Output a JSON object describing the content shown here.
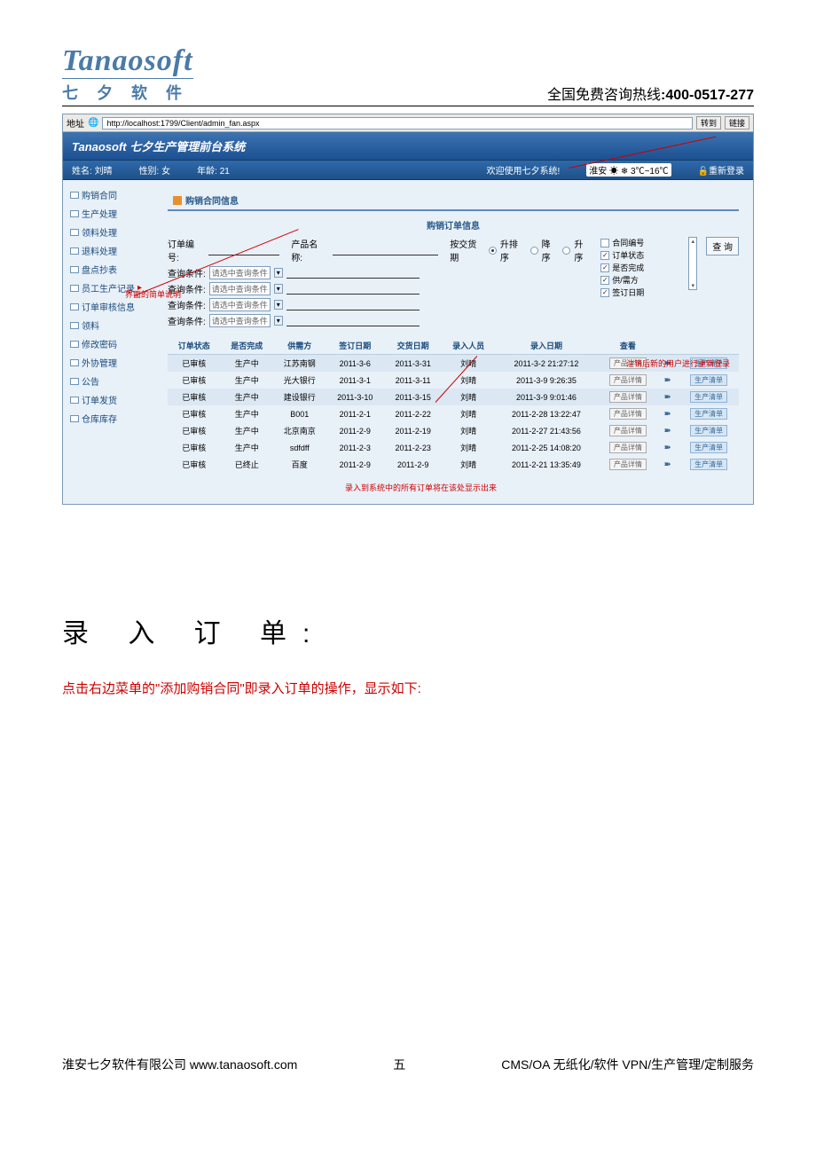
{
  "header": {
    "logo_top": "Tanaosoft",
    "logo_bottom": "七 夕 软 件",
    "hotline_label": "全国免费咨询热线",
    "hotline_number": "400-0517-277"
  },
  "browser": {
    "addr_label": "地址",
    "url": "http://localhost:1799/Client/admin_fan.aspx",
    "btn_go": "转到",
    "btn_links": "链接"
  },
  "app": {
    "brand": "Tanaosoft",
    "title": "七夕生产管理前台系统",
    "info_name_label": "姓名:",
    "info_name": "刘晴",
    "info_gender_label": "性别:",
    "info_gender": "女",
    "info_age_label": "年龄:",
    "info_age": "21",
    "welcome": "欢迎使用七夕系统!",
    "weather": "淮安 ☀ ❄ 3℃~16℃",
    "relogin": "重新登录"
  },
  "sidebar": {
    "items": [
      {
        "label": "购销合同"
      },
      {
        "label": "生产处理"
      },
      {
        "label": "领料处理"
      },
      {
        "label": "退料处理"
      },
      {
        "label": "盘点抄表"
      },
      {
        "label": "员工生产记录"
      },
      {
        "label": "订单审核信息"
      },
      {
        "label": "领料"
      },
      {
        "label": "修改密码"
      },
      {
        "label": "外协管理"
      },
      {
        "label": "公告"
      },
      {
        "label": "订单发货"
      },
      {
        "label": "仓库库存"
      }
    ]
  },
  "panel": {
    "title": "购销合同信息",
    "sub_title": "购销订单信息",
    "order_no_label": "订单编号:",
    "product_label": "产品名称:",
    "sort_label": "按交货期",
    "sort_opts": [
      "升排序",
      "降序",
      "升序"
    ],
    "cond_label": "查询条件:",
    "sel_placeholder": "请选中查询条件",
    "chk_items": [
      "合同编号",
      "订单状态",
      "是否完成",
      "供/需方",
      "签订日期"
    ],
    "query_btn": "查 询"
  },
  "table": {
    "headers": [
      "订单状态",
      "是否完成",
      "供需方",
      "签订日期",
      "交货日期",
      "录入人员",
      "录入日期",
      "查看",
      "",
      ""
    ],
    "rows": [
      {
        "s": "已审核",
        "c": "生产中",
        "sup": "江苏南钢",
        "d1": "2011-3-6",
        "d2": "2011-3-31",
        "p": "刘晴",
        "dt": "2011-3-2 21:27:12",
        "alt": 1
      },
      {
        "s": "已审核",
        "c": "生产中",
        "sup": "光大银行",
        "d1": "2011-3-1",
        "d2": "2011-3-11",
        "p": "刘晴",
        "dt": "2011-3-9 9:26:35",
        "alt": 0
      },
      {
        "s": "已审核",
        "c": "生产中",
        "sup": "建设银行",
        "d1": "2011-3-10",
        "d2": "2011-3-15",
        "p": "刘晴",
        "dt": "2011-3-9 9:01:46",
        "alt": 1
      },
      {
        "s": "已审核",
        "c": "生产中",
        "sup": "B001",
        "d1": "2011-2-1",
        "d2": "2011-2-22",
        "p": "刘晴",
        "dt": "2011-2-28 13:22:47",
        "alt": 0
      },
      {
        "s": "已审核",
        "c": "生产中",
        "sup": "北京南京",
        "d1": "2011-2-9",
        "d2": "2011-2-19",
        "p": "刘晴",
        "dt": "2011-2-27 21:43:56",
        "alt": 0
      },
      {
        "s": "已审核",
        "c": "生产中",
        "sup": "sdfdff",
        "d1": "2011-2-3",
        "d2": "2011-2-23",
        "p": "刘晴",
        "dt": "2011-2-25 14:08:20",
        "alt": 0
      },
      {
        "s": "已审核",
        "c": "已终止",
        "sup": "百度",
        "d1": "2011-2-9",
        "d2": "2011-2-9",
        "p": "刘晴",
        "dt": "2011-2-21 13:35:49",
        "alt": 0
      }
    ],
    "detail_btn": "产品详情",
    "gen_btn": "生产清单"
  },
  "annotations": {
    "top_right": "注销后新的用户进行重新登录",
    "left": "界面的简单说明",
    "bottom": "录入到系统中的所有订单将在该处显示出来",
    "arrow_to_sidebar": "▸"
  },
  "doc": {
    "heading": "录 入 订 单:",
    "red_line": "点击右边菜单的\"添加购销合同\"即录入订单的操作，显示如下:"
  },
  "footer": {
    "left": "淮安七夕软件有限公司 www.tanaosoft.com",
    "center": "五",
    "right": "CMS/OA 无纸化/软件 VPN/生产管理/定制服务"
  },
  "colors": {
    "logo": "#4a7aa8",
    "app_header": "#1c5091",
    "panel_blue": "#2a5a8a",
    "red": "#c00"
  }
}
